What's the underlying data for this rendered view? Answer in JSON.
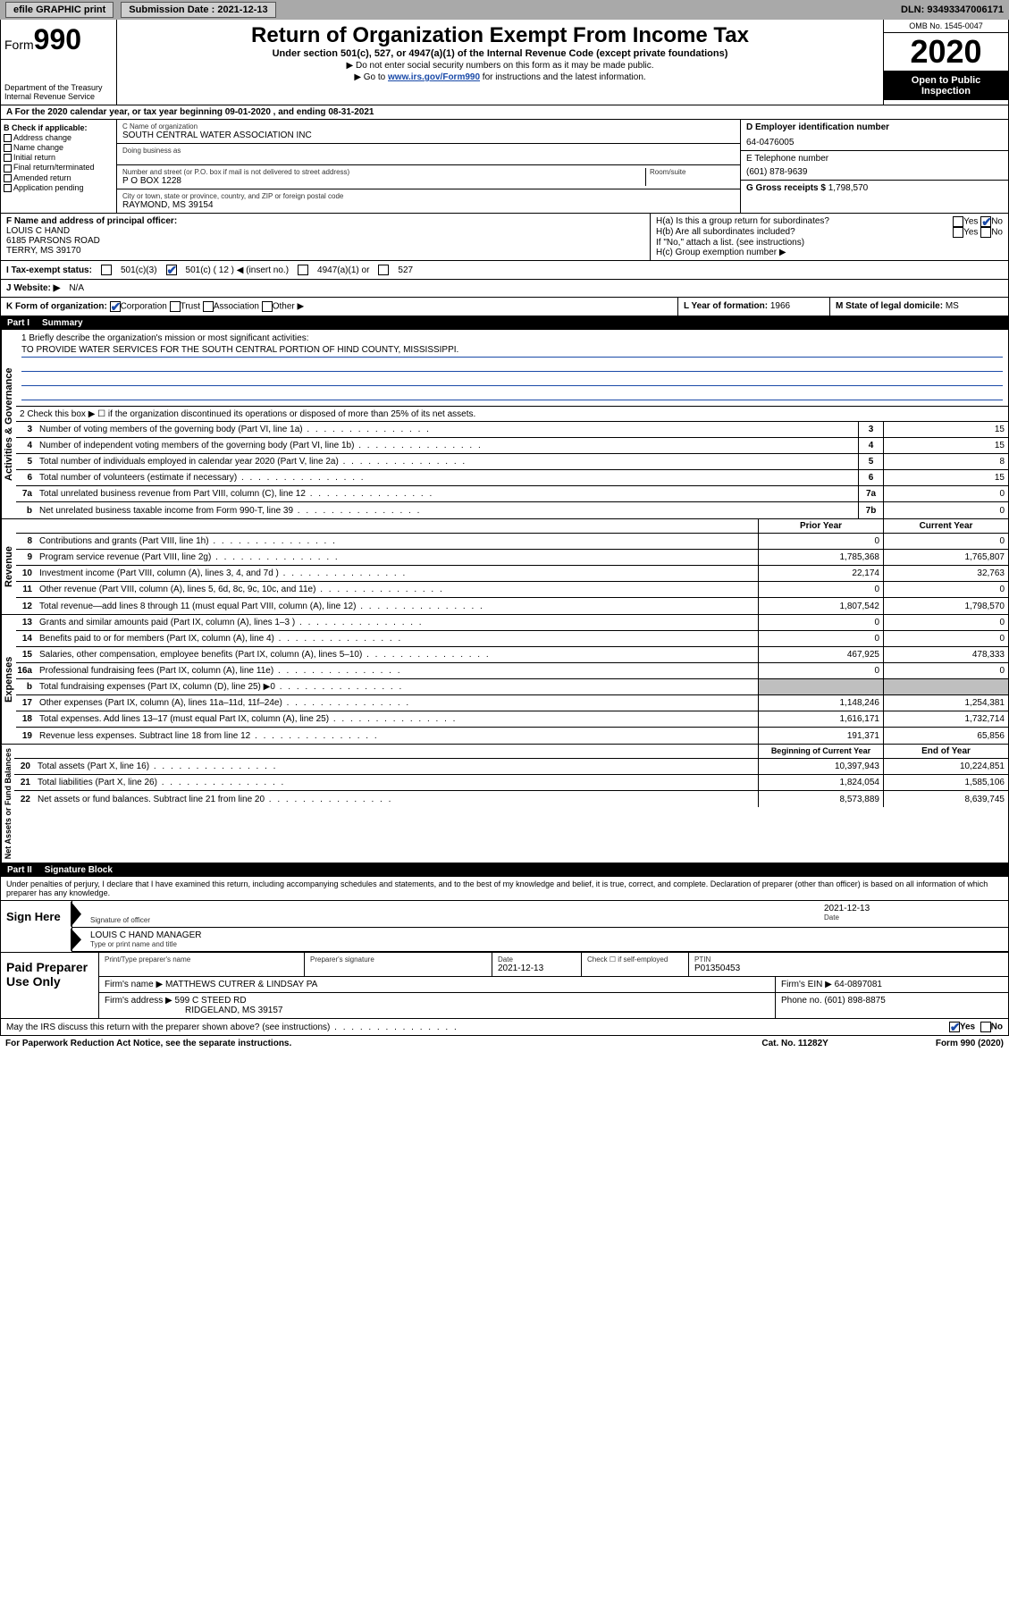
{
  "topbar": {
    "efile": "efile GRAPHIC print",
    "submission_label": "Submission Date :",
    "submission_date": "2021-12-13",
    "dln_label": "DLN:",
    "dln": "93493347006171"
  },
  "header": {
    "form_prefix": "Form",
    "form_number": "990",
    "dept": "Department of the Treasury",
    "irs": "Internal Revenue Service",
    "title": "Return of Organization Exempt From Income Tax",
    "subtitle": "Under section 501(c), 527, or 4947(a)(1) of the Internal Revenue Code (except private foundations)",
    "note1": "▶ Do not enter social security numbers on this form as it may be made public.",
    "note2_pre": "▶ Go to ",
    "note2_link": "www.irs.gov/Form990",
    "note2_post": " for instructions and the latest information.",
    "omb": "OMB No. 1545-0047",
    "year": "2020",
    "open_public": "Open to Public Inspection"
  },
  "section_a": "A   For the 2020 calendar year, or tax year beginning 09-01-2020    , and ending 08-31-2021",
  "box_b": {
    "title": "B Check if applicable:",
    "opts": [
      "Address change",
      "Name change",
      "Initial return",
      "Final return/terminated",
      "Amended return",
      "Application pending"
    ]
  },
  "box_c": {
    "name_label": "C Name of organization",
    "name": "SOUTH CENTRAL WATER ASSOCIATION INC",
    "dba_label": "Doing business as",
    "addr_label": "Number and street (or P.O. box if mail is not delivered to street address)",
    "room_label": "Room/suite",
    "addr": "P O BOX 1228",
    "city_label": "City or town, state or province, country, and ZIP or foreign postal code",
    "city": "RAYMOND, MS  39154"
  },
  "box_d": {
    "label": "D Employer identification number",
    "val": "64-0476005"
  },
  "box_e": {
    "label": "E Telephone number",
    "val": "(601) 878-9639"
  },
  "box_g": {
    "label": "G Gross receipts $",
    "val": "1,798,570"
  },
  "box_f": {
    "label": "F Name and address of principal officer:",
    "name": "LOUIS C HAND",
    "addr1": "6185 PARSONS ROAD",
    "addr2": "TERRY, MS  39170"
  },
  "box_h": {
    "ha": "H(a)  Is this a group return for subordinates?",
    "hb": "H(b)  Are all subordinates included?",
    "hnote": "If \"No,\" attach a list. (see instructions)",
    "hc": "H(c)  Group exemption number ▶",
    "yes": "Yes",
    "no": "No"
  },
  "box_i": {
    "label": "I   Tax-exempt status:",
    "o1": "501(c)(3)",
    "o2": "501(c) ( 12 ) ◀ (insert no.)",
    "o3": "4947(a)(1) or",
    "o4": "527"
  },
  "box_j": {
    "label": "J   Website: ▶",
    "val": "N/A"
  },
  "box_k": {
    "label": "K Form of organization:",
    "o1": "Corporation",
    "o2": "Trust",
    "o3": "Association",
    "o4": "Other ▶"
  },
  "box_l": {
    "label": "L Year of formation:",
    "val": "1966"
  },
  "box_m": {
    "label": "M State of legal domicile:",
    "val": "MS"
  },
  "part1": {
    "num": "Part I",
    "title": "Summary"
  },
  "summary": {
    "q1_label": "1   Briefly describe the organization's mission or most significant activities:",
    "q1_text": "TO PROVIDE WATER SERVICES FOR THE SOUTH CENTRAL PORTION OF HIND COUNTY, MISSISSIPPI.",
    "q2": "2     Check this box ▶ ☐  if the organization discontinued its operations or disposed of more than 25% of its net assets.",
    "vert_labels": {
      "gov": "Activities & Governance",
      "rev": "Revenue",
      "exp": "Expenses",
      "net": "Net Assets or Fund Balances"
    },
    "col_prior": "Prior Year",
    "col_current": "Current Year",
    "col_begin": "Beginning of Current Year",
    "col_end": "End of Year",
    "lines_gov": [
      {
        "n": "3",
        "t": "Number of voting members of the governing body (Part VI, line 1a)",
        "box": "3",
        "v": "15"
      },
      {
        "n": "4",
        "t": "Number of independent voting members of the governing body (Part VI, line 1b)",
        "box": "4",
        "v": "15"
      },
      {
        "n": "5",
        "t": "Total number of individuals employed in calendar year 2020 (Part V, line 2a)",
        "box": "5",
        "v": "8"
      },
      {
        "n": "6",
        "t": "Total number of volunteers (estimate if necessary)",
        "box": "6",
        "v": "15"
      },
      {
        "n": "7a",
        "t": "Total unrelated business revenue from Part VIII, column (C), line 12",
        "box": "7a",
        "v": "0"
      },
      {
        "n": "b",
        "t": "Net unrelated business taxable income from Form 990-T, line 39",
        "box": "7b",
        "v": "0"
      }
    ],
    "lines_rev": [
      {
        "n": "8",
        "t": "Contributions and grants (Part VIII, line 1h)",
        "p": "0",
        "c": "0"
      },
      {
        "n": "9",
        "t": "Program service revenue (Part VIII, line 2g)",
        "p": "1,785,368",
        "c": "1,765,807"
      },
      {
        "n": "10",
        "t": "Investment income (Part VIII, column (A), lines 3, 4, and 7d )",
        "p": "22,174",
        "c": "32,763"
      },
      {
        "n": "11",
        "t": "Other revenue (Part VIII, column (A), lines 5, 6d, 8c, 9c, 10c, and 11e)",
        "p": "0",
        "c": "0"
      },
      {
        "n": "12",
        "t": "Total revenue—add lines 8 through 11 (must equal Part VIII, column (A), line 12)",
        "p": "1,807,542",
        "c": "1,798,570"
      }
    ],
    "lines_exp": [
      {
        "n": "13",
        "t": "Grants and similar amounts paid (Part IX, column (A), lines 1–3 )",
        "p": "0",
        "c": "0"
      },
      {
        "n": "14",
        "t": "Benefits paid to or for members (Part IX, column (A), line 4)",
        "p": "0",
        "c": "0"
      },
      {
        "n": "15",
        "t": "Salaries, other compensation, employee benefits (Part IX, column (A), lines 5–10)",
        "p": "467,925",
        "c": "478,333"
      },
      {
        "n": "16a",
        "t": "Professional fundraising fees (Part IX, column (A), line 11e)",
        "p": "0",
        "c": "0"
      },
      {
        "n": "b",
        "t": "Total fundraising expenses (Part IX, column (D), line 25) ▶0",
        "p": "",
        "c": "",
        "shade": true
      },
      {
        "n": "17",
        "t": "Other expenses (Part IX, column (A), lines 11a–11d, 11f–24e)",
        "p": "1,148,246",
        "c": "1,254,381"
      },
      {
        "n": "18",
        "t": "Total expenses. Add lines 13–17 (must equal Part IX, column (A), line 25)",
        "p": "1,616,171",
        "c": "1,732,714"
      },
      {
        "n": "19",
        "t": "Revenue less expenses. Subtract line 18 from line 12",
        "p": "191,371",
        "c": "65,856"
      }
    ],
    "lines_net": [
      {
        "n": "20",
        "t": "Total assets (Part X, line 16)",
        "p": "10,397,943",
        "c": "10,224,851"
      },
      {
        "n": "21",
        "t": "Total liabilities (Part X, line 26)",
        "p": "1,824,054",
        "c": "1,585,106"
      },
      {
        "n": "22",
        "t": "Net assets or fund balances. Subtract line 21 from line 20",
        "p": "8,573,889",
        "c": "8,639,745"
      }
    ]
  },
  "part2": {
    "num": "Part II",
    "title": "Signature Block"
  },
  "perjury": "Under penalties of perjury, I declare that I have examined this return, including accompanying schedules and statements, and to the best of my knowledge and belief, it is true, correct, and complete. Declaration of preparer (other than officer) is based on all information of which preparer has any knowledge.",
  "sign": {
    "here": "Sign Here",
    "sig_label": "Signature of officer",
    "date_label": "Date",
    "date": "2021-12-13",
    "name": "LOUIS C HAND  MANAGER",
    "name_label": "Type or print name and title"
  },
  "prep": {
    "label": "Paid Preparer Use Only",
    "h1": "Print/Type preparer's name",
    "h2": "Preparer's signature",
    "h3": "Date",
    "h3v": "2021-12-13",
    "h4": "Check ☐ if self-employed",
    "h5": "PTIN",
    "h5v": "P01350453",
    "firm_label": "Firm's name    ▶",
    "firm": "MATTHEWS CUTRER & LINDSAY PA",
    "ein_label": "Firm's EIN ▶",
    "ein": "64-0897081",
    "addr_label": "Firm's address ▶",
    "addr1": "599 C STEED RD",
    "addr2": "RIDGELAND, MS  39157",
    "phone_label": "Phone no.",
    "phone": "(601) 898-8875"
  },
  "discuss": {
    "q": "May the IRS discuss this return with the preparer shown above? (see instructions)",
    "yes": "Yes",
    "no": "No"
  },
  "footer": {
    "l": "For Paperwork Reduction Act Notice, see the separate instructions.",
    "m": "Cat. No. 11282Y",
    "r": "Form 990 (2020)"
  }
}
